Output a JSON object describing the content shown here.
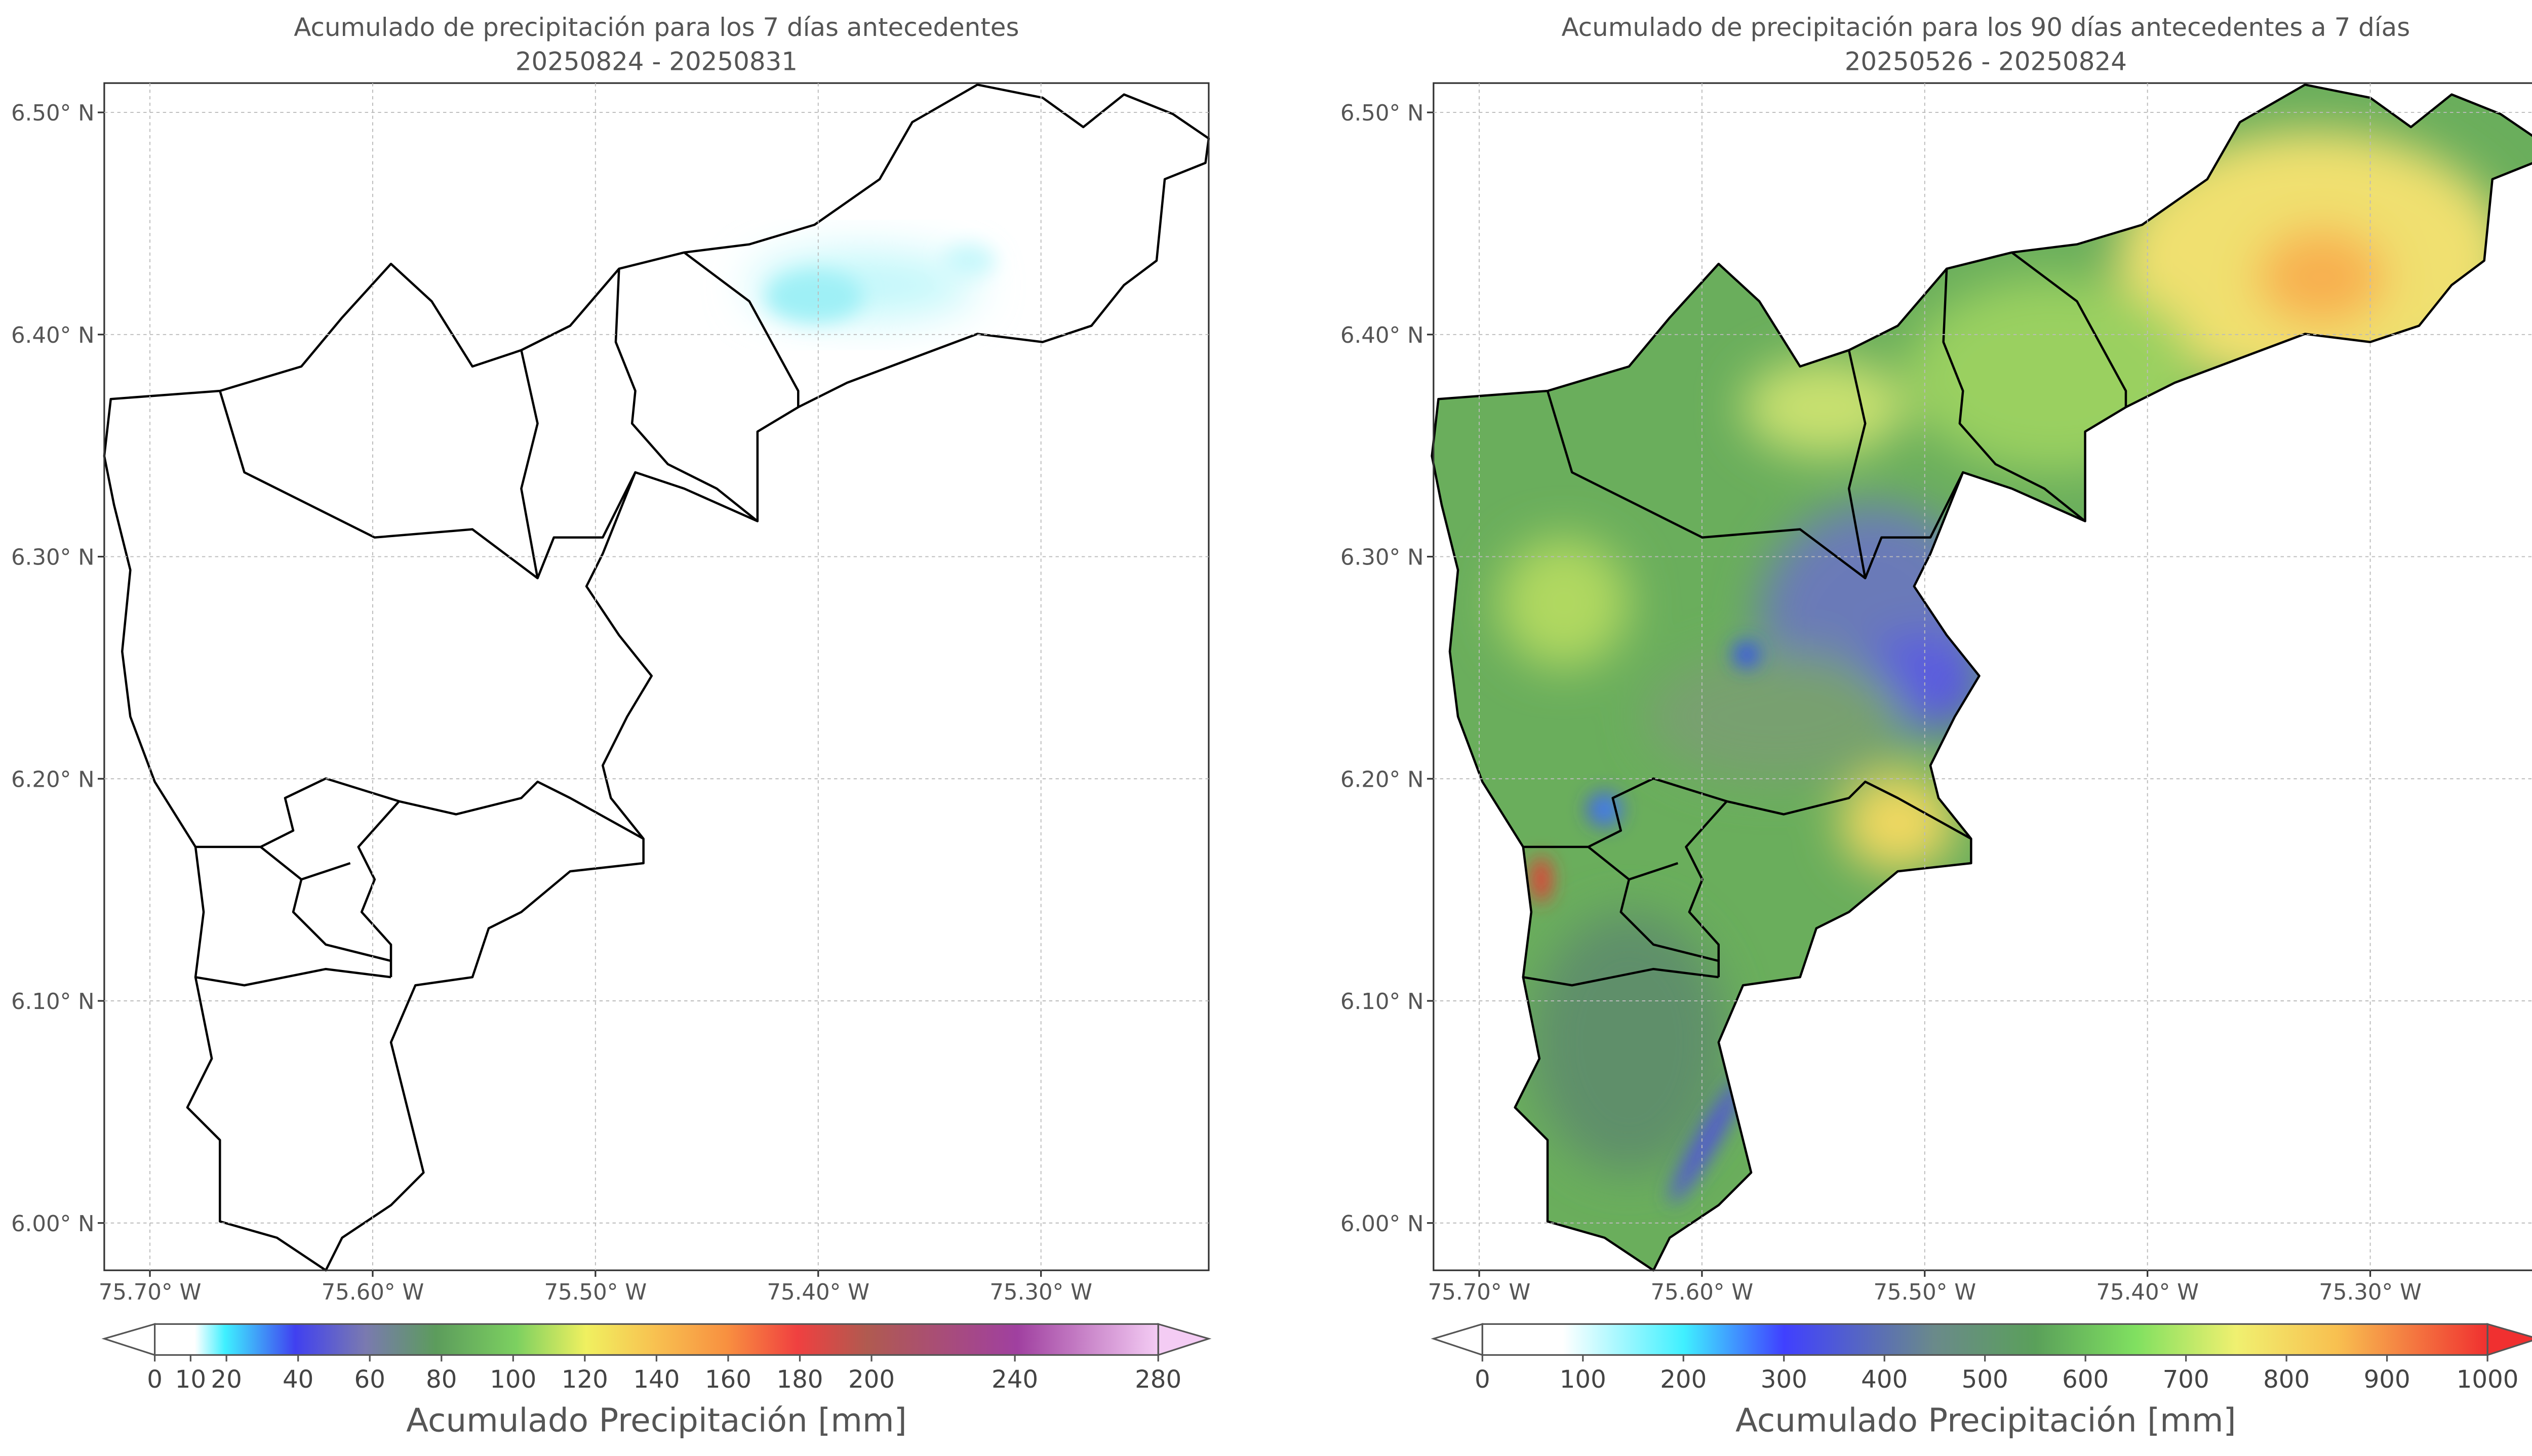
{
  "panels": [
    {
      "title": "Acumulado de precipitación para los 7 días antecedentes",
      "subtitle": "20250824 - 20250831",
      "lon_range": [
        -75.7205,
        -75.2247
      ],
      "lat_range": [
        5.9787,
        6.5132
      ],
      "lon_ticks": [
        {
          "value": -75.7,
          "label": "75.70° W"
        },
        {
          "value": -75.6,
          "label": "75.60° W"
        },
        {
          "value": -75.5,
          "label": "75.50° W"
        },
        {
          "value": -75.4,
          "label": "75.40° W"
        },
        {
          "value": -75.3,
          "label": "75.30° W"
        }
      ],
      "lat_ticks": [
        {
          "value": 6.5,
          "label": "6.50° N"
        },
        {
          "value": 6.4,
          "label": "6.40° N"
        },
        {
          "value": 6.3,
          "label": "6.30° N"
        },
        {
          "value": 6.2,
          "label": "6.20° N"
        },
        {
          "value": 6.1,
          "label": "6.10° N"
        },
        {
          "value": 6.0,
          "label": "6.00° N"
        }
      ],
      "colorbar": {
        "label": "Acumulado Precipitación [mm]",
        "range": [
          0,
          280
        ],
        "ticks": [
          0,
          10,
          20,
          40,
          60,
          80,
          100,
          120,
          140,
          160,
          180,
          200,
          240,
          280
        ]
      }
    },
    {
      "title": "Acumulado de precipitación para los 90 días antecedentes a 7 días",
      "subtitle": "20250526 - 20250824",
      "lon_range": [
        -75.7205,
        -75.2247
      ],
      "lat_range": [
        5.9787,
        6.5132
      ],
      "lon_ticks": [
        {
          "value": -75.7,
          "label": "75.70° W"
        },
        {
          "value": -75.6,
          "label": "75.60° W"
        },
        {
          "value": -75.5,
          "label": "75.50° W"
        },
        {
          "value": -75.4,
          "label": "75.40° W"
        },
        {
          "value": -75.3,
          "label": "75.30° W"
        }
      ],
      "lat_ticks": [
        {
          "value": 6.5,
          "label": "6.50° N"
        },
        {
          "value": 6.4,
          "label": "6.40° N"
        },
        {
          "value": 6.3,
          "label": "6.30° N"
        },
        {
          "value": 6.2,
          "label": "6.20° N"
        },
        {
          "value": 6.1,
          "label": "6.10° N"
        },
        {
          "value": 6.0,
          "label": "6.00° N"
        }
      ],
      "colorbar": {
        "label": "Acumulado Precipitación [mm]",
        "range": [
          0,
          1000
        ],
        "ticks": [
          0,
          100,
          200,
          300,
          400,
          500,
          600,
          700,
          800,
          900,
          1000
        ]
      }
    }
  ]
}
